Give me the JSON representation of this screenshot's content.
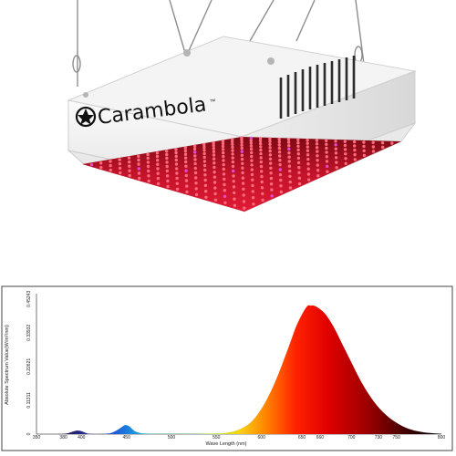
{
  "product": {
    "brand": "Carambola",
    "tagline": "™"
  },
  "chart_data": {
    "type": "area",
    "title": "",
    "xlabel": "Wave Length (nm)",
    "ylabel": "Absolute Spectrum Value(W/m²/nm)",
    "xlim": [
      350,
      800
    ],
    "ylim": [
      0,
      0.47
    ],
    "x_ticks": [
      "350",
      "380",
      "400",
      "450",
      "500",
      "550",
      "600",
      "650",
      "660",
      "700",
      "730",
      "750",
      "800"
    ],
    "y_ticks": [
      "0",
      "0.11311",
      "0.22621",
      "0.33932",
      "0.45243"
    ],
    "series": [
      {
        "x": [
          350,
          370,
          380,
          385,
          390,
          395,
          400,
          405,
          410,
          420,
          430,
          435,
          440,
          445,
          448,
          452,
          456,
          460,
          465,
          470,
          480,
          500,
          530,
          550,
          560,
          570,
          580,
          590,
          600,
          610,
          620,
          630,
          640,
          650,
          655,
          660,
          670,
          680,
          690,
          700,
          710,
          720,
          730,
          740,
          750,
          760,
          770,
          780,
          790,
          800
        ],
        "y": [
          0,
          0,
          0.001,
          0.003,
          0.008,
          0.012,
          0.01,
          0.004,
          0.001,
          0,
          0.002,
          0.006,
          0.014,
          0.024,
          0.03,
          0.028,
          0.018,
          0.009,
          0.004,
          0.002,
          0.001,
          0.001,
          0.001,
          0.002,
          0.004,
          0.01,
          0.022,
          0.045,
          0.085,
          0.14,
          0.21,
          0.29,
          0.37,
          0.425,
          0.43,
          0.428,
          0.405,
          0.36,
          0.3,
          0.24,
          0.18,
          0.13,
          0.09,
          0.06,
          0.038,
          0.022,
          0.012,
          0.006,
          0.003,
          0.001
        ]
      }
    ],
    "grid": false,
    "legend": "none"
  }
}
